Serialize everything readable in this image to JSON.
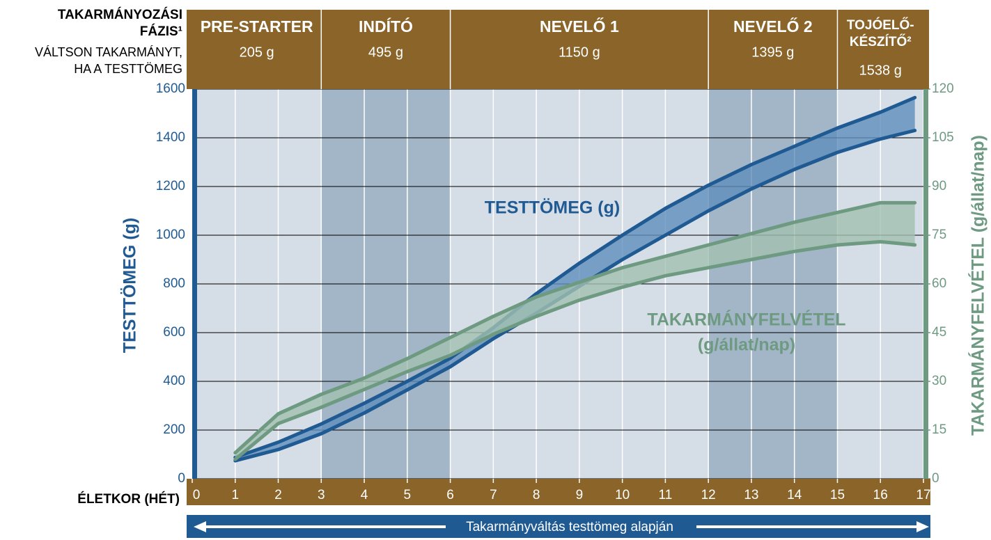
{
  "chart_data": {
    "type": "band",
    "header_lines": [
      "TAKARMÁNYOZÁSI",
      "FÁZIS¹"
    ],
    "subheader_lines": [
      "VÁLTSON TAKARMÁNYT,",
      "HA A TESTTÖMEG"
    ],
    "phases": [
      {
        "name_lines": [
          "PRE-STARTER"
        ],
        "weight": "205 g",
        "start": 0,
        "end": 3,
        "shaded": false
      },
      {
        "name_lines": [
          "INDÍTÓ"
        ],
        "weight": "495 g",
        "start": 3,
        "end": 6,
        "shaded": true
      },
      {
        "name_lines": [
          "NEVELŐ 1"
        ],
        "weight": "1150 g",
        "start": 6,
        "end": 12,
        "shaded": false
      },
      {
        "name_lines": [
          "NEVELŐ 2"
        ],
        "weight": "1395 g",
        "start": 12,
        "end": 15,
        "shaded": true
      },
      {
        "name_lines": [
          "TOJÓELŐ-",
          "KÉSZÍTŐ²"
        ],
        "weight": "1538 g",
        "start": 15,
        "end": 17,
        "shaded": false
      }
    ],
    "ylabel": "TESTTÖMEG (g)",
    "y2label": "TAKARMÁNYFELVÉTEL (g/állat/nap)",
    "xlabel": "ÉLETKOR (HÉT)",
    "footer": "Takarmányváltás testtömeg alapján",
    "xlim": [
      0,
      17
    ],
    "xticks": [
      0,
      1,
      2,
      3,
      4,
      5,
      6,
      7,
      8,
      9,
      10,
      11,
      12,
      13,
      14,
      15,
      16,
      17
    ],
    "ylim": [
      0,
      1600
    ],
    "yticks": [
      0,
      200,
      400,
      600,
      800,
      1000,
      1200,
      1400,
      1600
    ],
    "y2lim": [
      0,
      120
    ],
    "y2ticks": [
      0,
      15,
      30,
      45,
      60,
      75,
      90,
      105,
      120
    ],
    "grid": true,
    "x": [
      1,
      2,
      3,
      4,
      5,
      6,
      7,
      8,
      9,
      10,
      11,
      12,
      13,
      14,
      15,
      16,
      16.8
    ],
    "series": [
      {
        "label_lines": [
          "TESTTÖMEG (g)"
        ],
        "color": "#1f5a93",
        "fill": "#5f8fbc",
        "axis": "y",
        "upper": [
          88,
          150,
          225,
          310,
          400,
          495,
          620,
          760,
          885,
          1000,
          1110,
          1205,
          1290,
          1365,
          1440,
          1505,
          1565
        ],
        "lower": [
          74,
          120,
          185,
          270,
          365,
          460,
          575,
          680,
          790,
          900,
          1000,
          1100,
          1190,
          1270,
          1340,
          1395,
          1430
        ]
      },
      {
        "label_lines": [
          "TAKARMÁNYFELVÉTEL",
          "(g/állat/nap)"
        ],
        "color": "#6e9a82",
        "fill": "#a2c0b0",
        "axis": "y2",
        "upper": [
          8,
          20,
          26,
          31,
          37,
          43.5,
          50,
          56,
          60.5,
          65,
          68.5,
          72,
          75.5,
          79,
          82,
          85,
          85
        ],
        "lower": [
          6,
          17,
          22,
          27.5,
          33,
          38,
          44.5,
          50,
          55,
          59,
          62.5,
          65,
          67.5,
          70,
          72,
          73,
          72
        ]
      }
    ]
  }
}
